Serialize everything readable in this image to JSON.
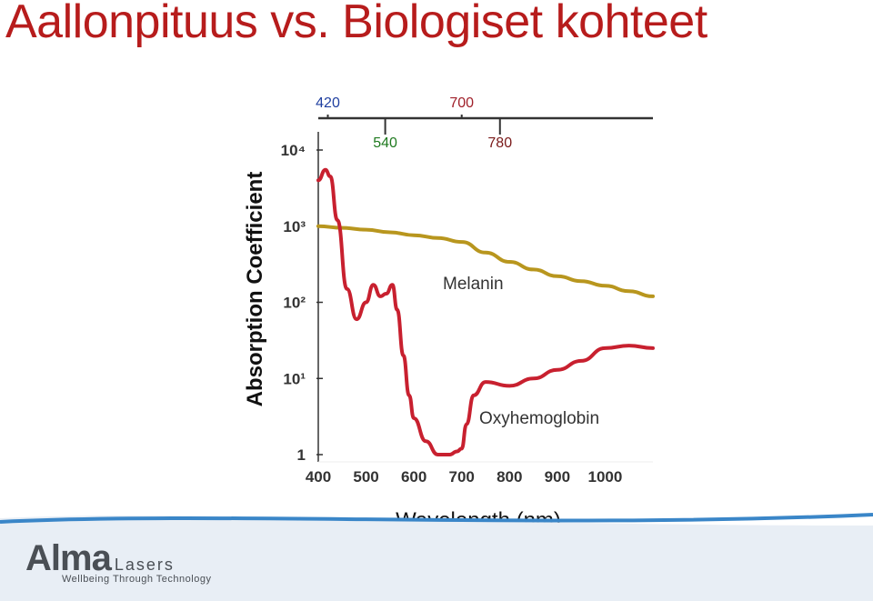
{
  "slide": {
    "title": "Aallonpituus vs. Biologiset kohteet"
  },
  "footer": {
    "brand": "Alma",
    "brand_suffix": "Lasers",
    "tagline": "Wellbeing Through Technology",
    "accent_color": "#3a86c8"
  },
  "chart_data": {
    "type": "line",
    "xlabel": "Wavelength (nm)",
    "ylabel": "Absorption Coefficient",
    "x_ticks": [
      "400",
      "500",
      "600",
      "700",
      "800",
      "900",
      "1000"
    ],
    "y_ticks": [
      "1",
      "10¹",
      "10²",
      "10³",
      "10⁴"
    ],
    "y_scale": "log",
    "xlim": [
      400,
      1100
    ],
    "ylim": [
      1,
      10000
    ],
    "grid": false,
    "markers": [
      {
        "label": "420",
        "x": 420,
        "color": "#1f3fa0"
      },
      {
        "label": "540",
        "x": 540,
        "color": "#1f7a1f"
      },
      {
        "label": "700",
        "x": 700,
        "color": "#a0202a"
      },
      {
        "label": "780",
        "x": 780,
        "color": "#7a1a1a"
      }
    ],
    "series": [
      {
        "name": "Melanin",
        "color": "#b8961e",
        "x": [
          400,
          450,
          500,
          550,
          600,
          650,
          700,
          750,
          800,
          850,
          900,
          950,
          1000,
          1050,
          1100
        ],
        "y": [
          1000,
          950,
          900,
          830,
          760,
          700,
          620,
          450,
          340,
          270,
          220,
          190,
          165,
          140,
          120
        ]
      },
      {
        "name": "Oxyhemoglobin",
        "color": "#c8202f",
        "x": [
          400,
          415,
          425,
          440,
          460,
          480,
          500,
          515,
          530,
          542,
          555,
          565,
          578,
          590,
          600,
          625,
          650,
          675,
          690,
          700,
          710,
          725,
          750,
          800,
          850,
          900,
          950,
          1000,
          1050,
          1100
        ],
        "y": [
          4000,
          5500,
          4500,
          1200,
          150,
          60,
          100,
          170,
          120,
          130,
          170,
          80,
          20,
          6,
          3,
          1.5,
          1,
          1,
          1.1,
          1.2,
          2.5,
          6,
          9,
          8,
          10,
          13,
          17,
          25,
          27,
          25
        ]
      }
    ]
  }
}
